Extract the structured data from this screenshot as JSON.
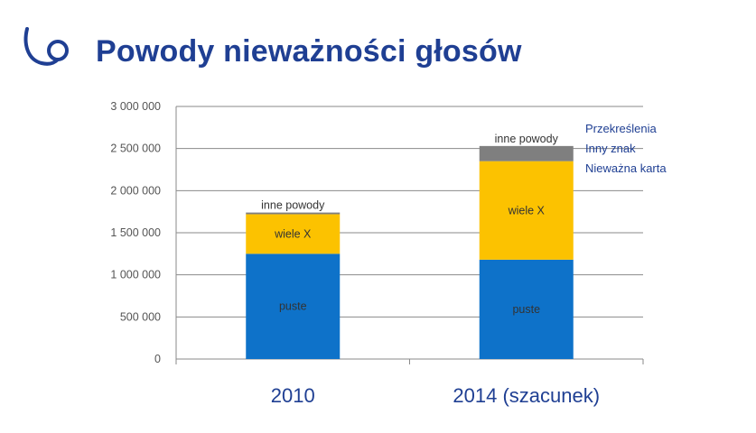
{
  "page": {
    "title": "Powody nieważności głosów"
  },
  "colors": {
    "title": "#1f3f93",
    "puste": "#0e72c9",
    "wiele_x": "#fcc200",
    "inne_powody": "#7f7f7f",
    "grid": "#8a8a8a"
  },
  "chart_data": {
    "type": "bar",
    "stacked": true,
    "title": "",
    "xlabel": "",
    "ylabel": "",
    "ylim": [
      0,
      3000000
    ],
    "yticks": [
      0,
      500000,
      1000000,
      1500000,
      2000000,
      2500000,
      3000000
    ],
    "ytick_labels": [
      "0",
      "500 000",
      "1 000 000",
      "1 500 000",
      "2 000 000",
      "2 500 000",
      "3 000 000"
    ],
    "categories": [
      "2010",
      "2014 (szacunek)"
    ],
    "series": [
      {
        "name": "puste",
        "values": [
          1250000,
          1180000
        ],
        "color": "#0e72c9"
      },
      {
        "name": "wiele X",
        "values": [
          470000,
          1170000
        ],
        "color": "#fcc200"
      },
      {
        "name": "inne powody",
        "values": [
          20000,
          180000
        ],
        "color": "#7f7f7f"
      }
    ],
    "legend": [
      "Przekreślenia",
      "Inny znak",
      "Nieważna karta"
    ],
    "legend_placement": "top-right",
    "grid": true
  }
}
